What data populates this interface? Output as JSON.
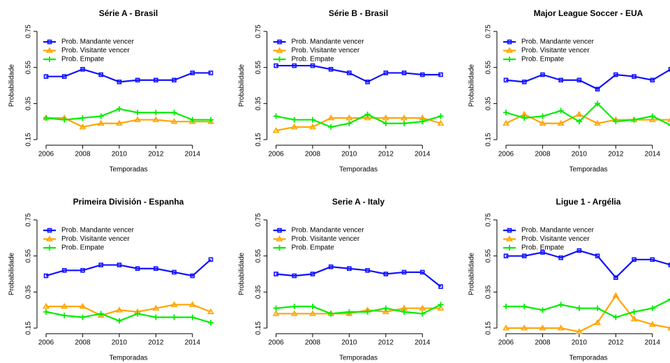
{
  "chart_data": [
    {
      "type": "line",
      "title": "Série A - Brasil",
      "x_label": "Temporadas",
      "y_label": "Probabilidade",
      "x": [
        2006,
        2007,
        2008,
        2009,
        2010,
        2011,
        2012,
        2013,
        2014,
        2015
      ],
      "xlim": [
        2006,
        2015
      ],
      "xticks": [
        2006,
        2008,
        2010,
        2012,
        2014
      ],
      "ylim": [
        0.15,
        0.75
      ],
      "yticks": [
        0.15,
        0.35,
        0.55,
        0.75
      ],
      "legend": "top-left",
      "series": [
        {
          "name": "Prob. Mandante vencer",
          "color": "#1010ff",
          "marker": "square",
          "values": [
            0.5,
            0.5,
            0.54,
            0.51,
            0.47,
            0.48,
            0.48,
            0.48,
            0.52,
            0.52
          ]
        },
        {
          "name": "Prob. Visitante vencer",
          "color": "#ffa500",
          "marker": "triangle",
          "values": [
            0.27,
            0.27,
            0.22,
            0.24,
            0.24,
            0.26,
            0.26,
            0.25,
            0.25,
            0.25
          ]
        },
        {
          "name": "Prob. Empate",
          "color": "#00ee00",
          "marker": "plus",
          "values": [
            0.27,
            0.26,
            0.27,
            0.28,
            0.32,
            0.3,
            0.3,
            0.3,
            0.26,
            0.26
          ]
        }
      ]
    },
    {
      "type": "line",
      "title": "Série B - Brasil",
      "x_label": "Temporadas",
      "y_label": "Probabilidade",
      "x": [
        2006,
        2007,
        2008,
        2009,
        2010,
        2011,
        2012,
        2013,
        2014,
        2015
      ],
      "xlim": [
        2006,
        2015
      ],
      "xticks": [
        2006,
        2008,
        2010,
        2012,
        2014
      ],
      "ylim": [
        0.15,
        0.75
      ],
      "yticks": [
        0.15,
        0.35,
        0.55,
        0.75
      ],
      "legend": "top-left",
      "series": [
        {
          "name": "Prob. Mandante vencer",
          "color": "#1010ff",
          "marker": "square",
          "values": [
            0.56,
            0.56,
            0.56,
            0.54,
            0.52,
            0.47,
            0.52,
            0.52,
            0.51,
            0.51
          ]
        },
        {
          "name": "Prob. Visitante vencer",
          "color": "#ffa500",
          "marker": "triangle",
          "values": [
            0.2,
            0.22,
            0.22,
            0.27,
            0.27,
            0.27,
            0.27,
            0.27,
            0.27,
            0.24
          ]
        },
        {
          "name": "Prob. Empate",
          "color": "#00ee00",
          "marker": "plus",
          "values": [
            0.28,
            0.26,
            0.26,
            0.22,
            0.24,
            0.29,
            0.24,
            0.24,
            0.25,
            0.28
          ]
        }
      ]
    },
    {
      "type": "line",
      "title": "Major League Soccer - EUA",
      "x_label": "Temporadas",
      "y_label": "Probabilidade",
      "x": [
        2006,
        2007,
        2008,
        2009,
        2010,
        2011,
        2012,
        2013,
        2014,
        2015
      ],
      "xlim": [
        2006,
        2015
      ],
      "xticks": [
        2006,
        2008,
        2010,
        2012,
        2014
      ],
      "ylim": [
        0.15,
        0.75
      ],
      "yticks": [
        0.15,
        0.35,
        0.55,
        0.75
      ],
      "legend": "top-left",
      "series": [
        {
          "name": "Prob. Mandante vencer",
          "color": "#1010ff",
          "marker": "square",
          "values": [
            0.48,
            0.47,
            0.51,
            0.48,
            0.48,
            0.43,
            0.51,
            0.5,
            0.48,
            0.54
          ]
        },
        {
          "name": "Prob. Visitante vencer",
          "color": "#ffa500",
          "marker": "triangle",
          "values": [
            0.24,
            0.29,
            0.24,
            0.24,
            0.29,
            0.24,
            0.26,
            0.26,
            0.26,
            0.26
          ]
        },
        {
          "name": "Prob. Empate",
          "color": "#00ee00",
          "marker": "plus",
          "values": [
            0.3,
            0.27,
            0.28,
            0.31,
            0.25,
            0.35,
            0.25,
            0.26,
            0.28,
            0.23
          ]
        }
      ]
    },
    {
      "type": "line",
      "title": "Primeira División - Espanha",
      "x_label": "Temporadas",
      "y_label": "Probabilidade",
      "x": [
        2006,
        2007,
        2008,
        2009,
        2010,
        2011,
        2012,
        2013,
        2014,
        2015
      ],
      "xlim": [
        2006,
        2015
      ],
      "xticks": [
        2006,
        2008,
        2010,
        2012,
        2014
      ],
      "ylim": [
        0.15,
        0.75
      ],
      "yticks": [
        0.15,
        0.35,
        0.55,
        0.75
      ],
      "legend": "top-left",
      "series": [
        {
          "name": "Prob. Mandante vencer",
          "color": "#1010ff",
          "marker": "square",
          "values": [
            0.44,
            0.47,
            0.47,
            0.5,
            0.5,
            0.48,
            0.48,
            0.46,
            0.44,
            0.53
          ]
        },
        {
          "name": "Prob. Visitante vencer",
          "color": "#ffa500",
          "marker": "triangle",
          "values": [
            0.27,
            0.27,
            0.27,
            0.22,
            0.25,
            0.24,
            0.26,
            0.28,
            0.28,
            0.24
          ]
        },
        {
          "name": "Prob. Empate",
          "color": "#00ee00",
          "marker": "plus",
          "values": [
            0.24,
            0.22,
            0.21,
            0.23,
            0.19,
            0.23,
            0.21,
            0.21,
            0.21,
            0.18
          ]
        }
      ]
    },
    {
      "type": "line",
      "title": "Serie A - Italy",
      "x_label": "Temporadas",
      "y_label": "Probabilidade",
      "x": [
        2006,
        2007,
        2008,
        2009,
        2010,
        2011,
        2012,
        2013,
        2014,
        2015
      ],
      "xlim": [
        2006,
        2015
      ],
      "xticks": [
        2006,
        2008,
        2010,
        2012,
        2014
      ],
      "ylim": [
        0.15,
        0.75
      ],
      "yticks": [
        0.15,
        0.35,
        0.55,
        0.75
      ],
      "legend": "top-left",
      "series": [
        {
          "name": "Prob. Mandante vencer",
          "color": "#1010ff",
          "marker": "square",
          "values": [
            0.45,
            0.44,
            0.45,
            0.49,
            0.48,
            0.47,
            0.45,
            0.46,
            0.46,
            0.38
          ]
        },
        {
          "name": "Prob. Visitante vencer",
          "color": "#ffa500",
          "marker": "triangle",
          "values": [
            0.23,
            0.23,
            0.23,
            0.23,
            0.23,
            0.25,
            0.24,
            0.26,
            0.26,
            0.26
          ]
        },
        {
          "name": "Prob. Empate",
          "color": "#00ee00",
          "marker": "plus",
          "values": [
            0.26,
            0.27,
            0.27,
            0.23,
            0.24,
            0.24,
            0.26,
            0.24,
            0.23,
            0.28
          ]
        }
      ]
    },
    {
      "type": "line",
      "title": "Ligue 1 - Argélia",
      "x_label": "Temporadas",
      "y_label": "Probabilidade",
      "x": [
        2006,
        2007,
        2008,
        2009,
        2010,
        2011,
        2012,
        2013,
        2014,
        2015
      ],
      "xlim": [
        2006,
        2015
      ],
      "xticks": [
        2006,
        2008,
        2010,
        2012,
        2014
      ],
      "ylim": [
        0.15,
        0.75
      ],
      "yticks": [
        0.15,
        0.35,
        0.55,
        0.75
      ],
      "legend": "top-left",
      "series": [
        {
          "name": "Prob. Mandante vencer",
          "color": "#1010ff",
          "marker": "square",
          "values": [
            0.55,
            0.55,
            0.57,
            0.54,
            0.58,
            0.55,
            0.43,
            0.53,
            0.53,
            0.5
          ]
        },
        {
          "name": "Prob. Visitante vencer",
          "color": "#ffa500",
          "marker": "triangle",
          "values": [
            0.15,
            0.15,
            0.15,
            0.15,
            0.13,
            0.18,
            0.33,
            0.2,
            0.17,
            0.15
          ]
        },
        {
          "name": "Prob. Empate",
          "color": "#00ee00",
          "marker": "plus",
          "values": [
            0.27,
            0.27,
            0.25,
            0.28,
            0.26,
            0.26,
            0.21,
            0.24,
            0.26,
            0.31
          ]
        }
      ]
    }
  ]
}
